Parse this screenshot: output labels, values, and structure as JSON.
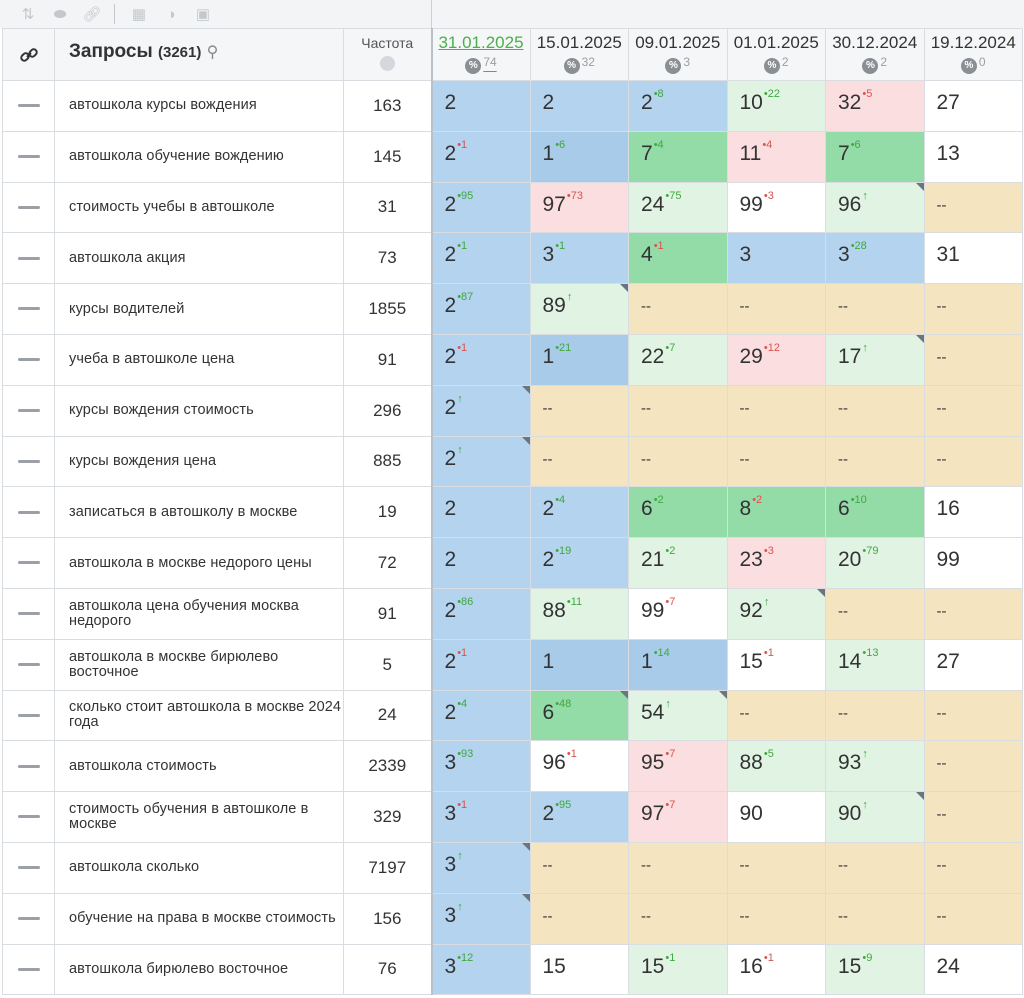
{
  "header": {
    "link_icon": "link-icon",
    "queries_title": "Запросы",
    "queries_count": "(3261)",
    "frequency_label": "Частота",
    "dates": [
      {
        "label": "31.01.2025",
        "pct": "74",
        "active": true
      },
      {
        "label": "15.01.2025",
        "pct": "32",
        "active": false
      },
      {
        "label": "09.01.2025",
        "pct": "3",
        "active": false
      },
      {
        "label": "01.01.2025",
        "pct": "2",
        "active": false
      },
      {
        "label": "30.12.2024",
        "pct": "2",
        "active": false
      },
      {
        "label": "19.12.2024",
        "pct": "0",
        "active": false
      }
    ]
  },
  "rows": [
    {
      "query": "автошкола курсы вождения",
      "freq": "163",
      "cells": [
        [
          "2",
          "",
          "",
          "bl1",
          false
        ],
        [
          "2",
          "",
          "",
          "bl1",
          false
        ],
        [
          "2",
          "8",
          "g",
          "bl1",
          false
        ],
        [
          "10",
          "22",
          "g",
          "gr1",
          false
        ],
        [
          "32",
          "5",
          "r",
          "rd",
          false
        ],
        [
          "27",
          "",
          "",
          "wh",
          false
        ]
      ]
    },
    {
      "query": "автошкола обучение вождению",
      "freq": "145",
      "cells": [
        [
          "2",
          "1",
          "r",
          "bl1",
          false
        ],
        [
          "1",
          "6",
          "g",
          "bl2",
          false
        ],
        [
          "7",
          "4",
          "g",
          "gr2",
          false
        ],
        [
          "11",
          "4",
          "r",
          "rd",
          false
        ],
        [
          "7",
          "6",
          "g",
          "gr2",
          false
        ],
        [
          "13",
          "",
          "",
          "wh",
          false
        ]
      ]
    },
    {
      "query": "стоимость учебы в автошколе",
      "freq": "31",
      "cells": [
        [
          "2",
          "95",
          "g",
          "bl1",
          false
        ],
        [
          "97",
          "73",
          "r",
          "rd",
          false
        ],
        [
          "24",
          "75",
          "g",
          "gr1",
          false
        ],
        [
          "99",
          "3",
          "r",
          "wh",
          false
        ],
        [
          "96",
          "↑",
          "g",
          "gr1",
          true
        ],
        [
          "--",
          "",
          "",
          "bg",
          false
        ]
      ]
    },
    {
      "query": "автошкола акция",
      "freq": "73",
      "cells": [
        [
          "2",
          "1",
          "g",
          "bl1",
          false
        ],
        [
          "3",
          "1",
          "g",
          "bl1",
          false
        ],
        [
          "4",
          "1",
          "r",
          "gr2",
          false
        ],
        [
          "3",
          "",
          "",
          "bl1",
          false
        ],
        [
          "3",
          "28",
          "g",
          "bl1",
          false
        ],
        [
          "31",
          "",
          "",
          "wh",
          false
        ]
      ]
    },
    {
      "query": "курсы водителей",
      "freq": "1855",
      "cells": [
        [
          "2",
          "87",
          "g",
          "bl1",
          false
        ],
        [
          "89",
          "↑",
          "g",
          "gr1",
          true
        ],
        [
          "--",
          "",
          "",
          "bg",
          false
        ],
        [
          "--",
          "",
          "",
          "bg",
          false
        ],
        [
          "--",
          "",
          "",
          "bg",
          false
        ],
        [
          "--",
          "",
          "",
          "bg",
          false
        ]
      ]
    },
    {
      "query": "учеба в автошколе цена",
      "freq": "91",
      "cells": [
        [
          "2",
          "1",
          "r",
          "bl1",
          false
        ],
        [
          "1",
          "21",
          "g",
          "bl2",
          false
        ],
        [
          "22",
          "7",
          "g",
          "gr1",
          false
        ],
        [
          "29",
          "12",
          "r",
          "rd",
          false
        ],
        [
          "17",
          "↑",
          "g",
          "gr1",
          true
        ],
        [
          "--",
          "",
          "",
          "bg",
          false
        ]
      ]
    },
    {
      "query": "курсы вождения стоимость",
      "freq": "296",
      "cells": [
        [
          "2",
          "↑",
          "g",
          "bl1",
          true
        ],
        [
          "--",
          "",
          "",
          "bg",
          false
        ],
        [
          "--",
          "",
          "",
          "bg",
          false
        ],
        [
          "--",
          "",
          "",
          "bg",
          false
        ],
        [
          "--",
          "",
          "",
          "bg",
          false
        ],
        [
          "--",
          "",
          "",
          "bg",
          false
        ]
      ]
    },
    {
      "query": "курсы вождения цена",
      "freq": "885",
      "cells": [
        [
          "2",
          "↑",
          "g",
          "bl1",
          true
        ],
        [
          "--",
          "",
          "",
          "bg",
          false
        ],
        [
          "--",
          "",
          "",
          "bg",
          false
        ],
        [
          "--",
          "",
          "",
          "bg",
          false
        ],
        [
          "--",
          "",
          "",
          "bg",
          false
        ],
        [
          "--",
          "",
          "",
          "bg",
          false
        ]
      ]
    },
    {
      "query": "записаться в автошколу в москве",
      "freq": "19",
      "cells": [
        [
          "2",
          "",
          "",
          "bl1",
          false
        ],
        [
          "2",
          "4",
          "g",
          "bl1",
          false
        ],
        [
          "6",
          "2",
          "g",
          "gr2",
          false
        ],
        [
          "8",
          "2",
          "r",
          "gr2",
          false
        ],
        [
          "6",
          "10",
          "g",
          "gr2",
          false
        ],
        [
          "16",
          "",
          "",
          "wh",
          false
        ]
      ]
    },
    {
      "query": "автошкола в москве недорого цены",
      "freq": "72",
      "cells": [
        [
          "2",
          "",
          "",
          "bl1",
          false
        ],
        [
          "2",
          "19",
          "g",
          "bl1",
          false
        ],
        [
          "21",
          "2",
          "g",
          "gr1",
          false
        ],
        [
          "23",
          "3",
          "r",
          "rd",
          false
        ],
        [
          "20",
          "79",
          "g",
          "gr1",
          false
        ],
        [
          "99",
          "",
          "",
          "wh",
          false
        ]
      ]
    },
    {
      "query": "автошкола цена обучения москва недорого",
      "freq": "91",
      "cells": [
        [
          "2",
          "86",
          "g",
          "bl1",
          false
        ],
        [
          "88",
          "11",
          "g",
          "gr1",
          false
        ],
        [
          "99",
          "7",
          "r",
          "wh",
          false
        ],
        [
          "92",
          "↑",
          "g",
          "gr1",
          true
        ],
        [
          "--",
          "",
          "",
          "bg",
          false
        ],
        [
          "--",
          "",
          "",
          "bg",
          false
        ]
      ]
    },
    {
      "query": "автошкола в москве бирюлево восточное",
      "freq": "5",
      "cells": [
        [
          "2",
          "1",
          "r",
          "bl1",
          false
        ],
        [
          "1",
          "",
          "",
          "bl2",
          false
        ],
        [
          "1",
          "14",
          "g",
          "bl2",
          false
        ],
        [
          "15",
          "1",
          "r",
          "wh",
          false
        ],
        [
          "14",
          "13",
          "g",
          "gr1",
          false
        ],
        [
          "27",
          "",
          "",
          "wh",
          false
        ]
      ]
    },
    {
      "query": "сколько стоит автошкола в москве 2024 года",
      "freq": "24",
      "cells": [
        [
          "2",
          "4",
          "g",
          "bl1",
          false
        ],
        [
          "6",
          "48",
          "g",
          "gr2",
          true
        ],
        [
          "54",
          "↑",
          "g",
          "gr1",
          true
        ],
        [
          "--",
          "",
          "",
          "bg",
          false
        ],
        [
          "--",
          "",
          "",
          "bg",
          false
        ],
        [
          "--",
          "",
          "",
          "bg",
          false
        ]
      ]
    },
    {
      "query": "автошкола стоимость",
      "freq": "2339",
      "cells": [
        [
          "3",
          "93",
          "g",
          "bl1",
          false
        ],
        [
          "96",
          "1",
          "r",
          "wh",
          false
        ],
        [
          "95",
          "7",
          "r",
          "rd",
          false
        ],
        [
          "88",
          "5",
          "g",
          "gr1",
          false
        ],
        [
          "93",
          "↑",
          "g",
          "gr1",
          false
        ],
        [
          "--",
          "",
          "",
          "bg",
          false
        ]
      ]
    },
    {
      "query": "стоимость обучения в автошколе в москве",
      "freq": "329",
      "cells": [
        [
          "3",
          "1",
          "r",
          "bl1",
          false
        ],
        [
          "2",
          "95",
          "g",
          "bl1",
          false
        ],
        [
          "97",
          "7",
          "r",
          "rd",
          false
        ],
        [
          "90",
          "",
          "",
          "wh",
          false
        ],
        [
          "90",
          "↑",
          "g",
          "gr1",
          true
        ],
        [
          "--",
          "",
          "",
          "bg",
          false
        ]
      ]
    },
    {
      "query": "автошкола сколько",
      "freq": "7197",
      "cells": [
        [
          "3",
          "↑",
          "g",
          "bl1",
          true
        ],
        [
          "--",
          "",
          "",
          "bg",
          false
        ],
        [
          "--",
          "",
          "",
          "bg",
          false
        ],
        [
          "--",
          "",
          "",
          "bg",
          false
        ],
        [
          "--",
          "",
          "",
          "bg",
          false
        ],
        [
          "--",
          "",
          "",
          "bg",
          false
        ]
      ]
    },
    {
      "query": "обучение на права в москве стоимость",
      "freq": "156",
      "cells": [
        [
          "3",
          "↑",
          "g",
          "bl1",
          true
        ],
        [
          "--",
          "",
          "",
          "bg",
          false
        ],
        [
          "--",
          "",
          "",
          "bg",
          false
        ],
        [
          "--",
          "",
          "",
          "bg",
          false
        ],
        [
          "--",
          "",
          "",
          "bg",
          false
        ],
        [
          "--",
          "",
          "",
          "bg",
          false
        ]
      ]
    },
    {
      "query": "автошкола бирюлево восточное",
      "freq": "76",
      "cells": [
        [
          "3",
          "12",
          "g",
          "bl1",
          false
        ],
        [
          "15",
          "",
          "",
          "wh",
          false
        ],
        [
          "15",
          "1",
          "g",
          "gr1",
          false
        ],
        [
          "16",
          "1",
          "r",
          "wh",
          false
        ],
        [
          "15",
          "9",
          "g",
          "gr1",
          false
        ],
        [
          "24",
          "",
          "",
          "wh",
          false
        ]
      ]
    }
  ]
}
